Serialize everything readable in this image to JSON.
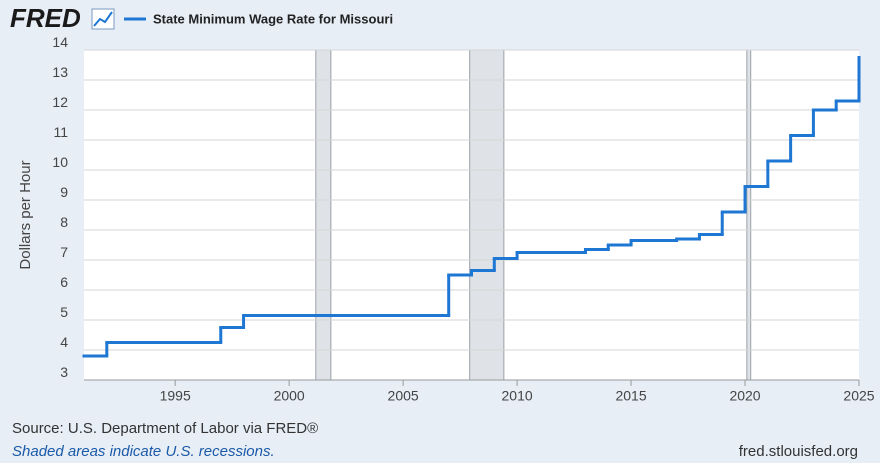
{
  "header": {
    "logo": "FRED"
  },
  "chart_data": {
    "type": "step",
    "ylabel": "Dollars per Hour",
    "x": [
      1991,
      1992,
      1997,
      1998,
      2007,
      2008,
      2009,
      2010,
      2013,
      2014,
      2015,
      2017,
      2018,
      2019,
      2020,
      2021,
      2022,
      2023,
      2024,
      2025
    ],
    "series": [
      {
        "name": "State Minimum Wage Rate for Missouri",
        "color": "#1f77d4",
        "values": [
          3.8,
          4.25,
          4.75,
          5.15,
          6.5,
          6.65,
          7.05,
          7.25,
          7.35,
          7.5,
          7.65,
          7.7,
          7.85,
          8.6,
          9.45,
          10.3,
          11.15,
          12.0,
          12.3,
          13.75
        ]
      }
    ],
    "xlim": [
      1991,
      2025
    ],
    "xticks": [
      1995,
      2000,
      2005,
      2010,
      2015,
      2020,
      2025
    ],
    "ylim": [
      3,
      14
    ],
    "yticks": [
      3,
      4,
      5,
      6,
      7,
      8,
      9,
      10,
      11,
      12,
      13,
      14
    ],
    "grid": true,
    "recessions": [
      [
        2001.17,
        2001.83
      ],
      [
        2007.92,
        2009.42
      ],
      [
        2020.08,
        2020.25
      ]
    ]
  },
  "footer": {
    "source": "Source: U.S. Department of Labor via FRED®",
    "note": "Shaded areas indicate U.S. recessions.",
    "site": "fred.stlouisfed.org"
  }
}
